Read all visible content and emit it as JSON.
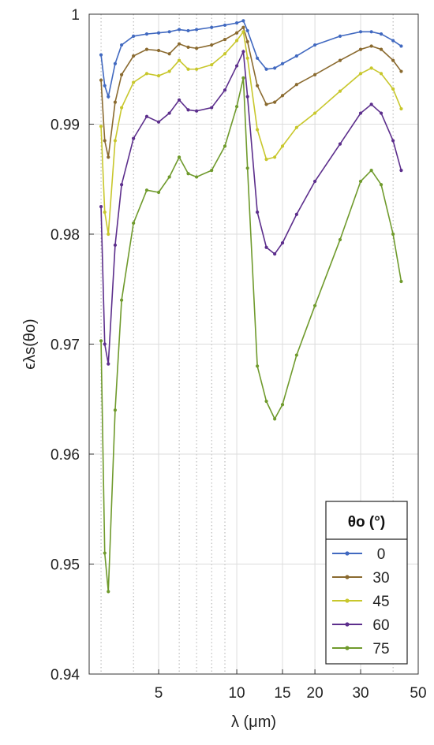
{
  "chart_data": {
    "type": "line",
    "xlabel": "λ (μm)",
    "ylabel": "ϵλs(θo)",
    "x_scale": "log",
    "xlim": [
      2.7,
      50
    ],
    "ylim": [
      0.94,
      1.0
    ],
    "x_ticks": [
      5,
      10,
      15,
      20,
      30,
      50
    ],
    "x_ticks_labels": [
      "5",
      "10",
      "15",
      "20",
      "30",
      "50"
    ],
    "y_ticks": [
      0.94,
      0.95,
      0.96,
      0.97,
      0.98,
      0.99,
      1.0
    ],
    "y_ticks_labels": [
      "0.94",
      "0.95",
      "0.96",
      "0.97",
      "0.98",
      "0.99",
      "1"
    ],
    "grid": true,
    "legend": {
      "title": "θo (°)",
      "placement": "bottom-right"
    },
    "series": [
      {
        "name": "0",
        "color": "#4169c0",
        "points": [
          [
            3.0,
            0.9963
          ],
          [
            3.1,
            0.9935
          ],
          [
            3.2,
            0.9925
          ],
          [
            3.4,
            0.9955
          ],
          [
            3.6,
            0.9972
          ],
          [
            4.0,
            0.998
          ],
          [
            4.5,
            0.9982
          ],
          [
            5.0,
            0.9983
          ],
          [
            5.5,
            0.9984
          ],
          [
            6.0,
            0.9986
          ],
          [
            6.5,
            0.9985
          ],
          [
            7.0,
            0.9986
          ],
          [
            8.0,
            0.9988
          ],
          [
            9.0,
            0.999
          ],
          [
            10.0,
            0.9992
          ],
          [
            10.6,
            0.9994
          ],
          [
            11.0,
            0.9985
          ],
          [
            12.0,
            0.996
          ],
          [
            13.0,
            0.995
          ],
          [
            14.0,
            0.9951
          ],
          [
            15.0,
            0.9955
          ],
          [
            17.0,
            0.9962
          ],
          [
            20.0,
            0.9972
          ],
          [
            25.0,
            0.998
          ],
          [
            30.0,
            0.9984
          ],
          [
            33.0,
            0.9984
          ],
          [
            36.0,
            0.9982
          ],
          [
            40.0,
            0.9976
          ],
          [
            43.0,
            0.9971
          ]
        ]
      },
      {
        "name": "30",
        "color": "#8a6a2f",
        "points": [
          [
            3.0,
            0.994
          ],
          [
            3.1,
            0.9885
          ],
          [
            3.2,
            0.987
          ],
          [
            3.4,
            0.992
          ],
          [
            3.6,
            0.9945
          ],
          [
            4.0,
            0.9962
          ],
          [
            4.5,
            0.9968
          ],
          [
            5.0,
            0.9967
          ],
          [
            5.5,
            0.9964
          ],
          [
            6.0,
            0.9973
          ],
          [
            6.5,
            0.997
          ],
          [
            7.0,
            0.9969
          ],
          [
            8.0,
            0.9972
          ],
          [
            9.0,
            0.9977
          ],
          [
            10.0,
            0.9983
          ],
          [
            10.6,
            0.9988
          ],
          [
            11.0,
            0.9975
          ],
          [
            12.0,
            0.9935
          ],
          [
            13.0,
            0.9918
          ],
          [
            14.0,
            0.992
          ],
          [
            15.0,
            0.9926
          ],
          [
            17.0,
            0.9936
          ],
          [
            20.0,
            0.9945
          ],
          [
            25.0,
            0.9958
          ],
          [
            30.0,
            0.9968
          ],
          [
            33.0,
            0.9971
          ],
          [
            36.0,
            0.9968
          ],
          [
            40.0,
            0.9958
          ],
          [
            43.0,
            0.9948
          ]
        ]
      },
      {
        "name": "45",
        "color": "#c8c72c",
        "points": [
          [
            3.0,
            0.9898
          ],
          [
            3.1,
            0.982
          ],
          [
            3.2,
            0.98
          ],
          [
            3.4,
            0.9885
          ],
          [
            3.6,
            0.9915
          ],
          [
            4.0,
            0.9938
          ],
          [
            4.5,
            0.9946
          ],
          [
            5.0,
            0.9944
          ],
          [
            5.5,
            0.9948
          ],
          [
            6.0,
            0.9958
          ],
          [
            6.5,
            0.995
          ],
          [
            7.0,
            0.995
          ],
          [
            8.0,
            0.9954
          ],
          [
            9.0,
            0.9964
          ],
          [
            10.0,
            0.9976
          ],
          [
            10.6,
            0.9984
          ],
          [
            11.0,
            0.996
          ],
          [
            12.0,
            0.9895
          ],
          [
            13.0,
            0.9868
          ],
          [
            14.0,
            0.987
          ],
          [
            15.0,
            0.988
          ],
          [
            17.0,
            0.9897
          ],
          [
            20.0,
            0.991
          ],
          [
            25.0,
            0.993
          ],
          [
            30.0,
            0.9946
          ],
          [
            33.0,
            0.9951
          ],
          [
            36.0,
            0.9946
          ],
          [
            40.0,
            0.9932
          ],
          [
            43.0,
            0.9914
          ]
        ]
      },
      {
        "name": "60",
        "color": "#5c2e8c",
        "points": [
          [
            3.0,
            0.9825
          ],
          [
            3.1,
            0.97
          ],
          [
            3.2,
            0.9682
          ],
          [
            3.4,
            0.979
          ],
          [
            3.6,
            0.9845
          ],
          [
            4.0,
            0.9887
          ],
          [
            4.5,
            0.9907
          ],
          [
            5.0,
            0.9902
          ],
          [
            5.5,
            0.991
          ],
          [
            6.0,
            0.9922
          ],
          [
            6.5,
            0.9913
          ],
          [
            7.0,
            0.9912
          ],
          [
            8.0,
            0.9915
          ],
          [
            9.0,
            0.9931
          ],
          [
            10.0,
            0.9953
          ],
          [
            10.6,
            0.9966
          ],
          [
            11.0,
            0.9925
          ],
          [
            12.0,
            0.982
          ],
          [
            13.0,
            0.9788
          ],
          [
            14.0,
            0.9782
          ],
          [
            15.0,
            0.9792
          ],
          [
            17.0,
            0.9818
          ],
          [
            20.0,
            0.9848
          ],
          [
            25.0,
            0.9882
          ],
          [
            30.0,
            0.991
          ],
          [
            33.0,
            0.9918
          ],
          [
            36.0,
            0.991
          ],
          [
            40.0,
            0.9885
          ],
          [
            43.0,
            0.9858
          ]
        ]
      },
      {
        "name": "75",
        "color": "#6f9a2c",
        "points": [
          [
            3.0,
            0.9703
          ],
          [
            3.1,
            0.951
          ],
          [
            3.2,
            0.9475
          ],
          [
            3.4,
            0.964
          ],
          [
            3.6,
            0.974
          ],
          [
            4.0,
            0.981
          ],
          [
            4.5,
            0.984
          ],
          [
            5.0,
            0.9838
          ],
          [
            5.5,
            0.9852
          ],
          [
            6.0,
            0.987
          ],
          [
            6.5,
            0.9855
          ],
          [
            7.0,
            0.9852
          ],
          [
            8.0,
            0.9858
          ],
          [
            9.0,
            0.988
          ],
          [
            10.0,
            0.9916
          ],
          [
            10.6,
            0.9942
          ],
          [
            11.0,
            0.986
          ],
          [
            12.0,
            0.968
          ],
          [
            13.0,
            0.9648
          ],
          [
            14.0,
            0.9632
          ],
          [
            15.0,
            0.9645
          ],
          [
            17.0,
            0.969
          ],
          [
            20.0,
            0.9735
          ],
          [
            25.0,
            0.9795
          ],
          [
            30.0,
            0.9848
          ],
          [
            33.0,
            0.9858
          ],
          [
            36.0,
            0.9845
          ],
          [
            40.0,
            0.98
          ],
          [
            43.0,
            0.9757
          ]
        ]
      }
    ]
  }
}
